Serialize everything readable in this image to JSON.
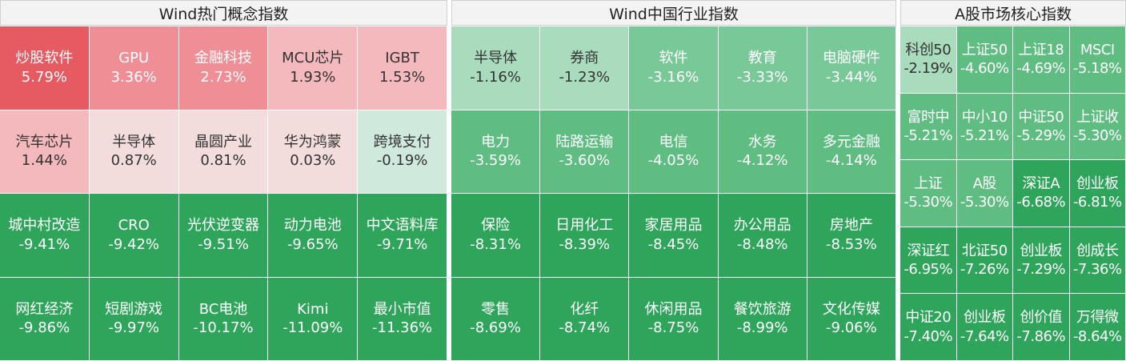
{
  "chart_data": [
    {
      "type": "heatmap",
      "title": "Wind热门概念指数",
      "rows": 4,
      "cols": 5,
      "cells": [
        {
          "name": "炒股软件",
          "value": 5.79,
          "label": "5.79%"
        },
        {
          "name": "GPU",
          "value": 3.36,
          "label": "3.36%"
        },
        {
          "name": "金融科技",
          "value": 2.73,
          "label": "2.73%"
        },
        {
          "name": "MCU芯片",
          "value": 1.93,
          "label": "1.93%"
        },
        {
          "name": "IGBT",
          "value": 1.53,
          "label": "1.53%"
        },
        {
          "name": "汽车芯片",
          "value": 1.44,
          "label": "1.44%"
        },
        {
          "name": "半导体",
          "value": 0.87,
          "label": "0.87%"
        },
        {
          "name": "晶圆产业",
          "value": 0.81,
          "label": "0.81%"
        },
        {
          "name": "华为鸿蒙",
          "value": 0.03,
          "label": "0.03%"
        },
        {
          "name": "跨境支付",
          "value": -0.19,
          "label": "-0.19%"
        },
        {
          "name": "城中村改造",
          "value": -9.41,
          "label": "-9.41%"
        },
        {
          "name": "CRO",
          "value": -9.42,
          "label": "-9.42%"
        },
        {
          "name": "光伏逆变器",
          "value": -9.51,
          "label": "-9.51%"
        },
        {
          "name": "动力电池",
          "value": -9.65,
          "label": "-9.65%"
        },
        {
          "name": "中文语料库",
          "value": -9.71,
          "label": "-9.71%"
        },
        {
          "name": "网红经济",
          "value": -9.86,
          "label": "-9.86%"
        },
        {
          "name": "短剧游戏",
          "value": -9.97,
          "label": "-9.97%"
        },
        {
          "name": "BC电池",
          "value": -10.17,
          "label": "-10.17%"
        },
        {
          "name": "Kimi",
          "value": -11.09,
          "label": "-11.09%"
        },
        {
          "name": "最小市值",
          "value": -11.36,
          "label": "-11.36%"
        }
      ]
    },
    {
      "type": "heatmap",
      "title": "Wind中国行业指数",
      "rows": 4,
      "cols": 5,
      "cells": [
        {
          "name": "半导体",
          "value": -1.16,
          "label": "-1.16%"
        },
        {
          "name": "券商",
          "value": -1.23,
          "label": "-1.23%"
        },
        {
          "name": "软件",
          "value": -3.16,
          "label": "-3.16%"
        },
        {
          "name": "教育",
          "value": -3.33,
          "label": "-3.33%"
        },
        {
          "name": "电脑硬件",
          "value": -3.44,
          "label": "-3.44%"
        },
        {
          "name": "电力",
          "value": -3.59,
          "label": "-3.59%"
        },
        {
          "name": "陆路运输",
          "value": -3.6,
          "label": "-3.60%"
        },
        {
          "name": "电信",
          "value": -4.05,
          "label": "-4.05%"
        },
        {
          "name": "水务",
          "value": -4.12,
          "label": "-4.12%"
        },
        {
          "name": "多元金融",
          "value": -4.14,
          "label": "-4.14%"
        },
        {
          "name": "保险",
          "value": -8.31,
          "label": "-8.31%"
        },
        {
          "name": "日用化工",
          "value": -8.39,
          "label": "-8.39%"
        },
        {
          "name": "家居用品",
          "value": -8.45,
          "label": "-8.45%"
        },
        {
          "name": "办公用品",
          "value": -8.48,
          "label": "-8.48%"
        },
        {
          "name": "房地产",
          "value": -8.53,
          "label": "-8.53%"
        },
        {
          "name": "零售",
          "value": -8.69,
          "label": "-8.69%"
        },
        {
          "name": "化纤",
          "value": -8.74,
          "label": "-8.74%"
        },
        {
          "name": "休闲用品",
          "value": -8.75,
          "label": "-8.75%"
        },
        {
          "name": "餐饮旅游",
          "value": -8.99,
          "label": "-8.99%"
        },
        {
          "name": "文化传媒",
          "value": -9.06,
          "label": "-9.06%"
        }
      ]
    },
    {
      "type": "heatmap",
      "title": "A股市场核心指数",
      "rows": 5,
      "cols": 4,
      "cells": [
        {
          "name": "科创50",
          "value": -2.19,
          "label": "-2.19%"
        },
        {
          "name": "上证50",
          "value": -4.6,
          "label": "-4.60%"
        },
        {
          "name": "上证18",
          "value": -4.69,
          "label": "-4.69%"
        },
        {
          "name": "MSCI",
          "value": -5.18,
          "label": "-5.18%"
        },
        {
          "name": "富时中",
          "value": -5.21,
          "label": "-5.21%"
        },
        {
          "name": "中小10",
          "value": -5.21,
          "label": "-5.21%"
        },
        {
          "name": "中证50",
          "value": -5.29,
          "label": "-5.29%"
        },
        {
          "name": "上证收",
          "value": -5.3,
          "label": "-5.30%"
        },
        {
          "name": "上证",
          "value": -5.3,
          "label": "-5.30%"
        },
        {
          "name": "A股",
          "value": -5.3,
          "label": "-5.30%"
        },
        {
          "name": "深证A",
          "value": -6.68,
          "label": "-6.68%"
        },
        {
          "name": "创业板",
          "value": -6.81,
          "label": "-6.81%"
        },
        {
          "name": "深证红",
          "value": -6.95,
          "label": "-6.95%"
        },
        {
          "name": "北证50",
          "value": -7.26,
          "label": "-7.26%"
        },
        {
          "name": "创业板",
          "value": -7.29,
          "label": "-7.29%"
        },
        {
          "name": "创成长",
          "value": -7.36,
          "label": "-7.36%"
        },
        {
          "name": "中证20",
          "value": -7.4,
          "label": "-7.40%"
        },
        {
          "name": "创业板",
          "value": -7.64,
          "label": "-7.64%"
        },
        {
          "name": "创价值",
          "value": -7.86,
          "label": "-7.86%"
        },
        {
          "name": "万得微",
          "value": -8.64,
          "label": "-8.64%"
        }
      ]
    }
  ],
  "colors": {
    "up_max": "#e65a62",
    "up_mid": "#f08e96",
    "up_light": "#f4b9bd",
    "neutral": "#f3dcdc",
    "down_light": "#cfe9dc",
    "down_pale": "#a9dcbd",
    "down_mid": "#78c898",
    "down_strong": "#5fbd82",
    "down_max": "#2ea55a"
  }
}
